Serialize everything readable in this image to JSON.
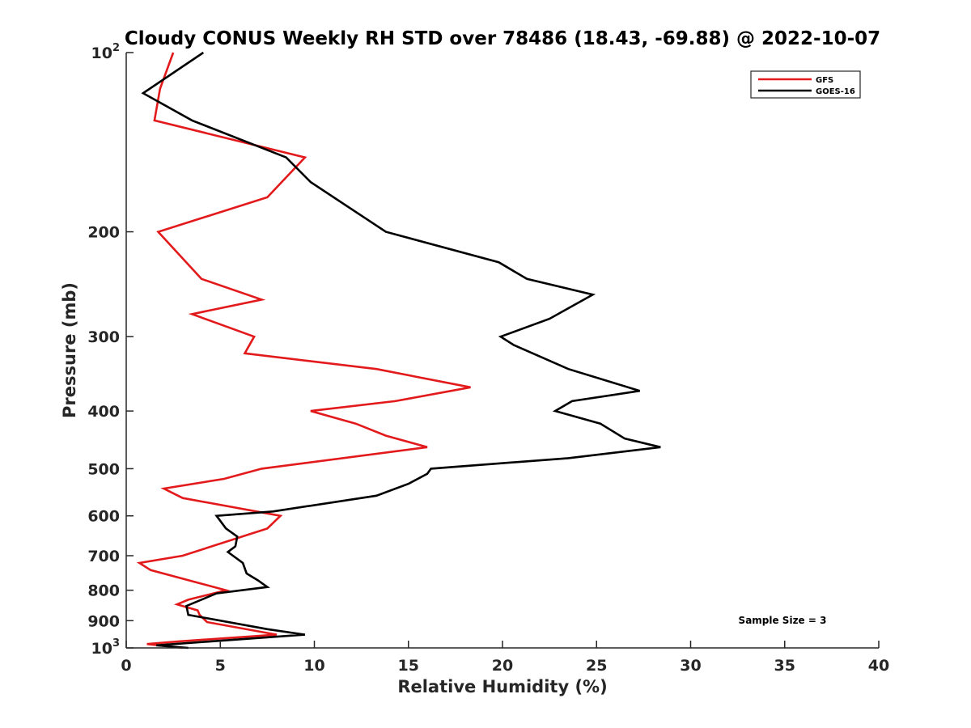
{
  "chart_data": {
    "type": "line",
    "title": "Cloudy CONUS Weekly RH STD over 78486 (18.43, -69.88) @ 2022-10-07",
    "xlabel": "Relative Humidity (%)",
    "ylabel": "Pressure (mb)",
    "xlim": [
      0,
      40
    ],
    "ylim": [
      100,
      1000
    ],
    "yscale": "log",
    "y_reversed": true,
    "grid": false,
    "legend_position": "top-right",
    "annotation": "Sample Size = 3",
    "x_ticks": [
      "0",
      "5",
      "10",
      "15",
      "20",
      "25",
      "30",
      "35",
      "40"
    ],
    "y_ticks": [
      {
        "value": 100,
        "label": "10",
        "exp": "2"
      },
      {
        "value": 200,
        "label": "200"
      },
      {
        "value": 300,
        "label": "300"
      },
      {
        "value": 400,
        "label": "400"
      },
      {
        "value": 500,
        "label": "500"
      },
      {
        "value": 600,
        "label": "600"
      },
      {
        "value": 700,
        "label": "700"
      },
      {
        "value": 800,
        "label": "800"
      },
      {
        "value": 900,
        "label": "900"
      },
      {
        "value": 1000,
        "label": "10",
        "exp": "3"
      }
    ],
    "series": [
      {
        "name": "GFS",
        "color": "#e31a1c",
        "points": [
          {
            "x": 2.5,
            "y": 100
          },
          {
            "x": 1.8,
            "y": 115
          },
          {
            "x": 1.5,
            "y": 130
          },
          {
            "x": 9.5,
            "y": 150
          },
          {
            "x": 7.5,
            "y": 175
          },
          {
            "x": 1.7,
            "y": 200
          },
          {
            "x": 4.0,
            "y": 240
          },
          {
            "x": 7.2,
            "y": 260
          },
          {
            "x": 3.5,
            "y": 275
          },
          {
            "x": 6.8,
            "y": 300
          },
          {
            "x": 6.3,
            "y": 320
          },
          {
            "x": 13.3,
            "y": 340
          },
          {
            "x": 18.3,
            "y": 365
          },
          {
            "x": 14.3,
            "y": 385
          },
          {
            "x": 9.8,
            "y": 400
          },
          {
            "x": 12.2,
            "y": 420
          },
          {
            "x": 13.8,
            "y": 440
          },
          {
            "x": 16.0,
            "y": 460
          },
          {
            "x": 7.2,
            "y": 500
          },
          {
            "x": 5.2,
            "y": 520
          },
          {
            "x": 2.0,
            "y": 540
          },
          {
            "x": 3.0,
            "y": 560
          },
          {
            "x": 8.2,
            "y": 600
          },
          {
            "x": 7.5,
            "y": 630
          },
          {
            "x": 3.0,
            "y": 700
          },
          {
            "x": 0.7,
            "y": 720
          },
          {
            "x": 1.3,
            "y": 740
          },
          {
            "x": 4.0,
            "y": 780
          },
          {
            "x": 5.3,
            "y": 800
          },
          {
            "x": 3.3,
            "y": 830
          },
          {
            "x": 2.7,
            "y": 845
          },
          {
            "x": 3.8,
            "y": 865
          },
          {
            "x": 3.9,
            "y": 880
          },
          {
            "x": 4.3,
            "y": 905
          },
          {
            "x": 8.0,
            "y": 950
          },
          {
            "x": 2.8,
            "y": 975
          },
          {
            "x": 1.1,
            "y": 985
          },
          {
            "x": 3.0,
            "y": 1000
          }
        ]
      },
      {
        "name": "GOES-16",
        "color": "#000000",
        "points": [
          {
            "x": 4.1,
            "y": 100
          },
          {
            "x": 0.9,
            "y": 117
          },
          {
            "x": 3.5,
            "y": 130
          },
          {
            "x": 8.5,
            "y": 150
          },
          {
            "x": 9.8,
            "y": 165
          },
          {
            "x": 13.8,
            "y": 200
          },
          {
            "x": 19.8,
            "y": 225
          },
          {
            "x": 21.3,
            "y": 240
          },
          {
            "x": 24.8,
            "y": 255
          },
          {
            "x": 22.5,
            "y": 280
          },
          {
            "x": 19.9,
            "y": 300
          },
          {
            "x": 20.6,
            "y": 310
          },
          {
            "x": 23.5,
            "y": 340
          },
          {
            "x": 27.3,
            "y": 370
          },
          {
            "x": 23.7,
            "y": 385
          },
          {
            "x": 22.8,
            "y": 400
          },
          {
            "x": 25.2,
            "y": 420
          },
          {
            "x": 26.5,
            "y": 445
          },
          {
            "x": 28.4,
            "y": 460
          },
          {
            "x": 23.5,
            "y": 480
          },
          {
            "x": 16.2,
            "y": 500
          },
          {
            "x": 16.0,
            "y": 510
          },
          {
            "x": 15.0,
            "y": 530
          },
          {
            "x": 13.3,
            "y": 555
          },
          {
            "x": 7.8,
            "y": 590
          },
          {
            "x": 4.8,
            "y": 600
          },
          {
            "x": 5.3,
            "y": 630
          },
          {
            "x": 5.9,
            "y": 650
          },
          {
            "x": 5.8,
            "y": 675
          },
          {
            "x": 5.4,
            "y": 690
          },
          {
            "x": 6.2,
            "y": 720
          },
          {
            "x": 6.4,
            "y": 750
          },
          {
            "x": 7.0,
            "y": 770
          },
          {
            "x": 7.5,
            "y": 790
          },
          {
            "x": 4.8,
            "y": 810
          },
          {
            "x": 3.2,
            "y": 850
          },
          {
            "x": 3.3,
            "y": 880
          },
          {
            "x": 7.5,
            "y": 930
          },
          {
            "x": 9.5,
            "y": 950
          },
          {
            "x": 1.6,
            "y": 990
          },
          {
            "x": 3.3,
            "y": 1000
          }
        ]
      }
    ]
  }
}
